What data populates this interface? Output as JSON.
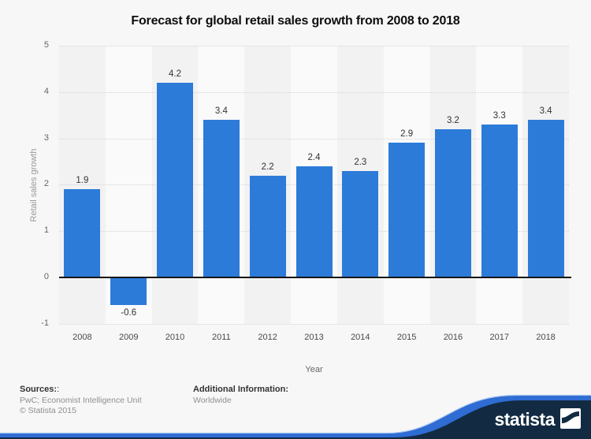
{
  "chart_data": {
    "type": "bar",
    "title": "Forecast for global retail sales growth from 2008 to 2018",
    "categories": [
      "2008",
      "2009",
      "2010",
      "2011",
      "2012",
      "2013",
      "2014",
      "2015",
      "2016",
      "2017",
      "2018"
    ],
    "values": [
      1.9,
      -0.6,
      4.2,
      3.4,
      2.2,
      2.4,
      2.3,
      2.9,
      3.2,
      3.3,
      3.4
    ],
    "xlabel": "Year",
    "ylabel": "Retail sales growth",
    "ylim": [
      -1,
      5
    ],
    "yticks": [
      "5",
      "4",
      "3",
      "2",
      "1",
      "0",
      "-1"
    ],
    "grid": "horizontal-dotted",
    "legend": "none",
    "bar_color": "#2c7bd9",
    "value_label_color": "#333333"
  },
  "footer": {
    "sources_label": "Sources:",
    "sources_suffix": ":",
    "sources_line1": "PwC; Economist Intelligence Unit",
    "sources_line2": "© Statista 2015",
    "additional_label": "Additional Information:",
    "additional_value": "Worldwide"
  },
  "branding": {
    "logo_text": "statista",
    "banner_navy": "#122b42",
    "stripe_blue": "#2f6cd3",
    "stripe_highlight": "#9cc0f0"
  }
}
